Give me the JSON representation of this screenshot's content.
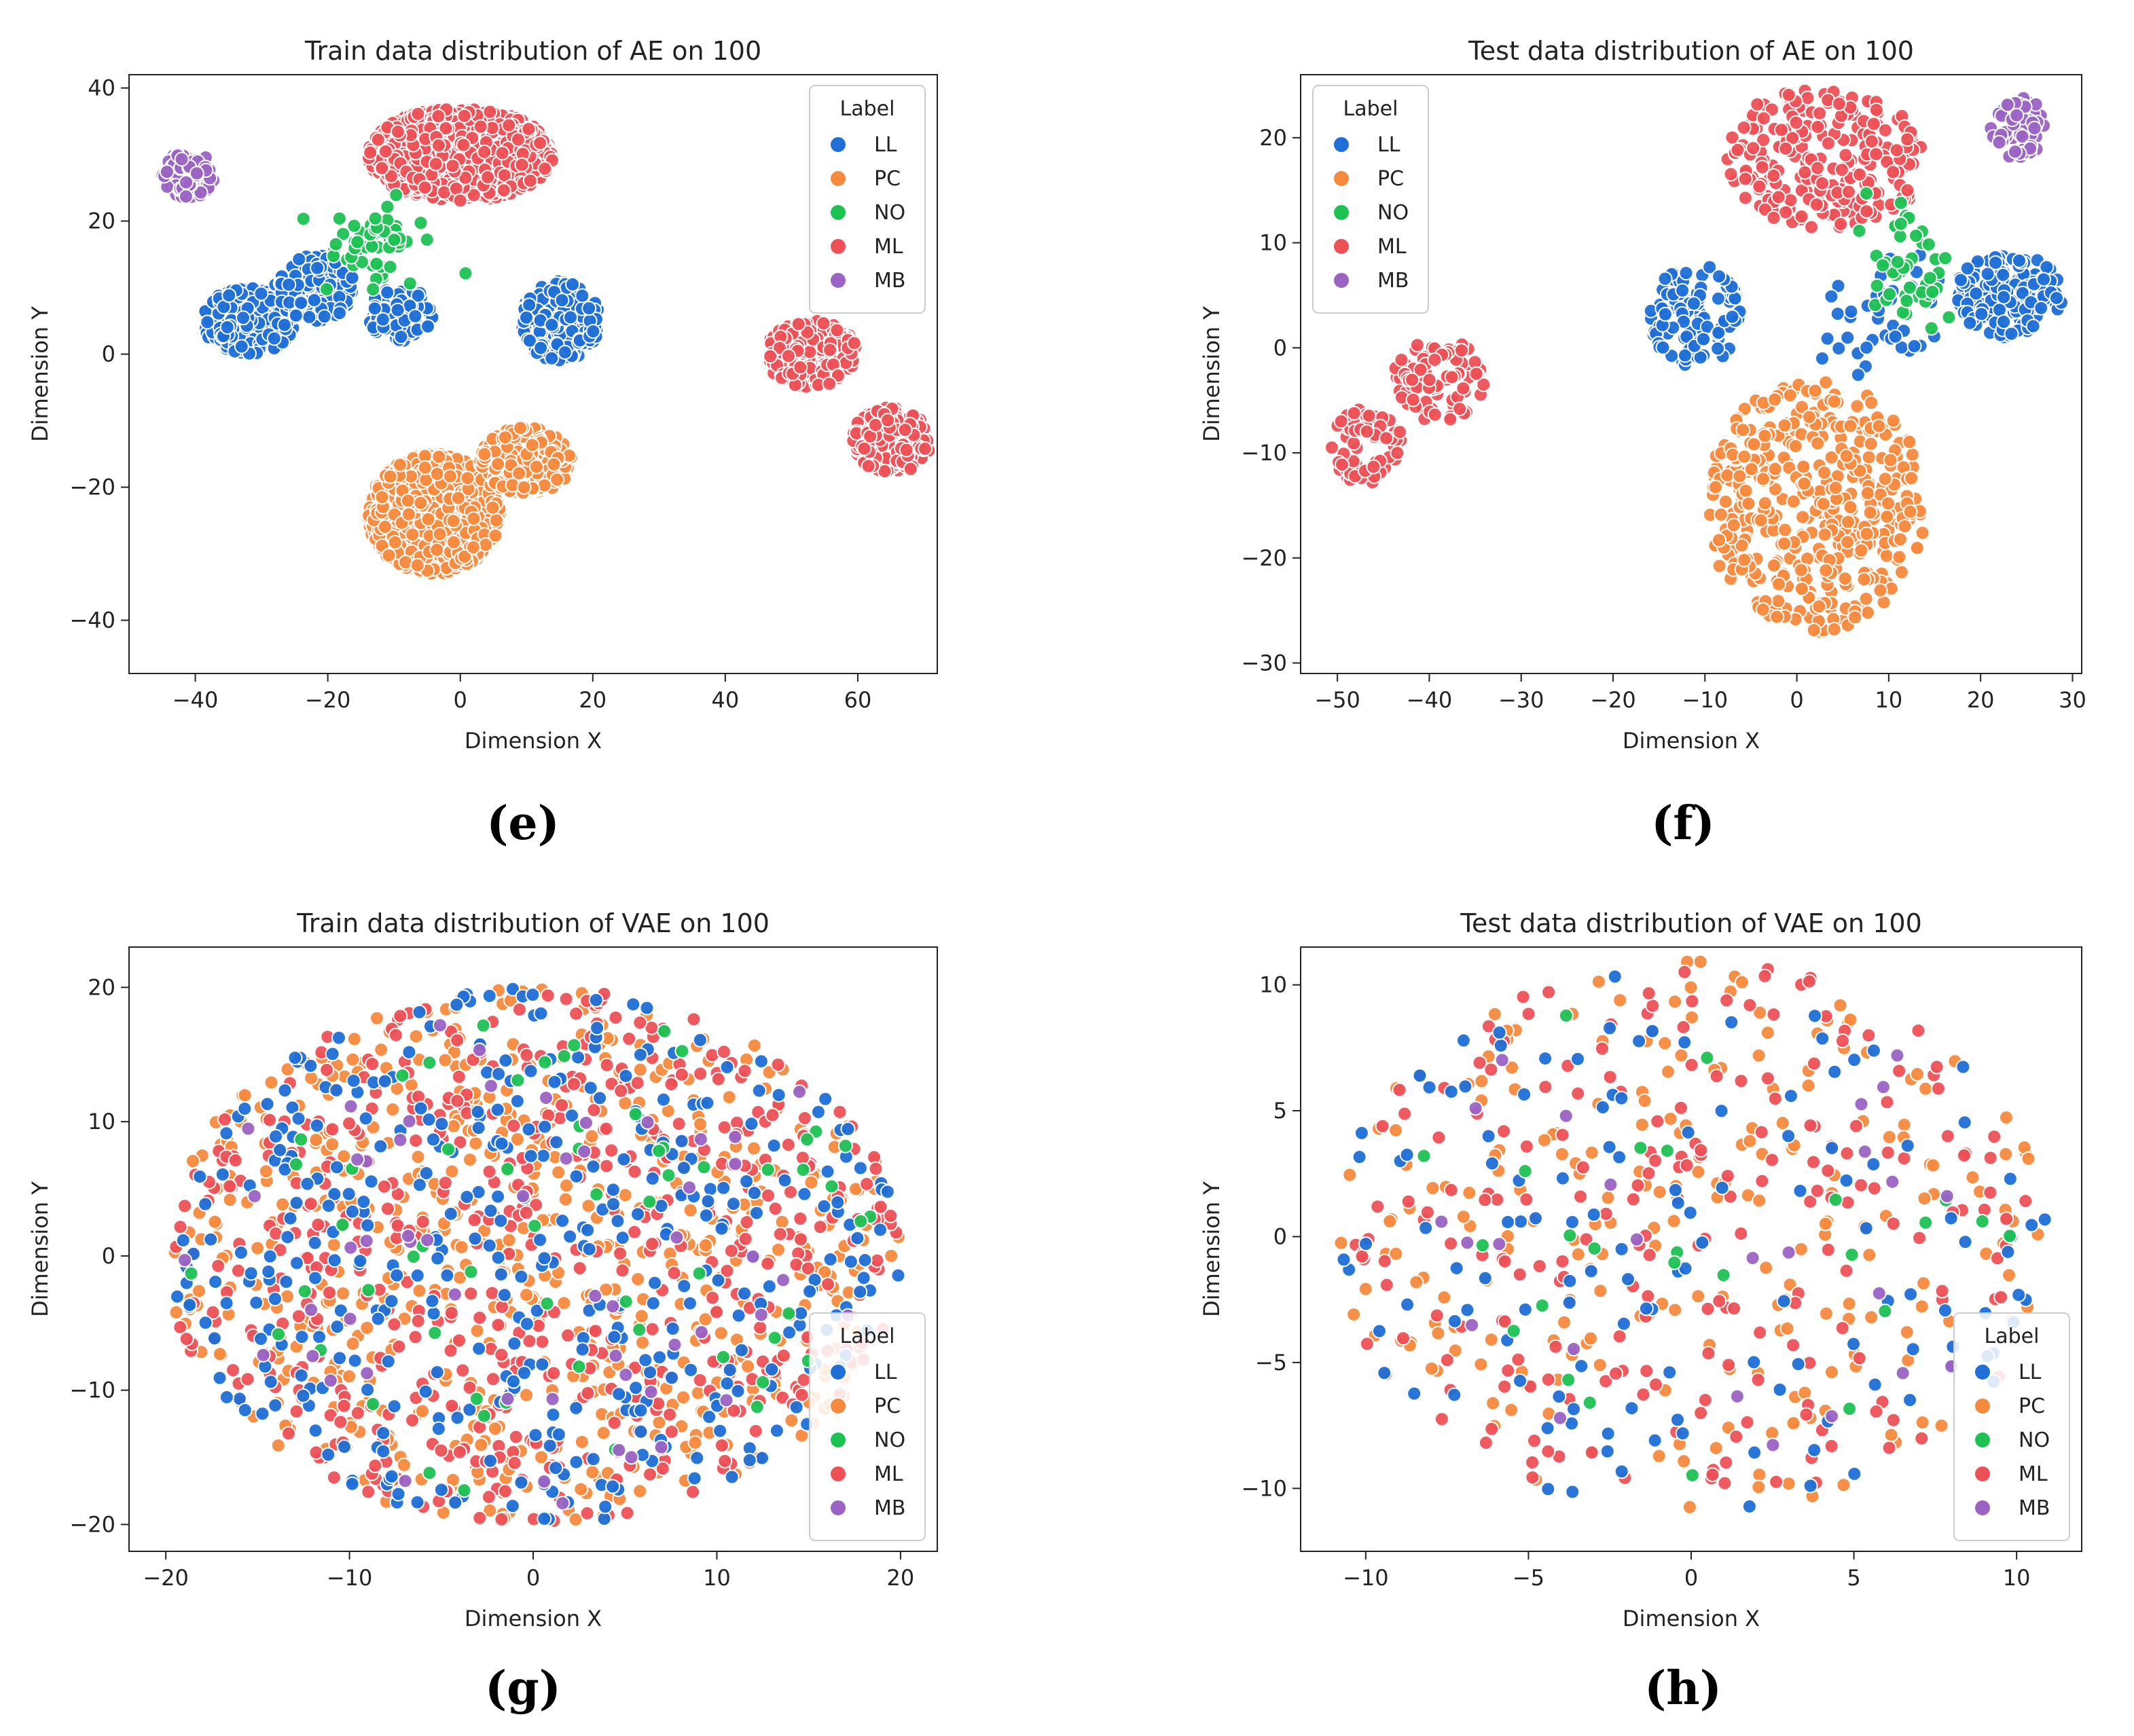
{
  "figure": {
    "captions": [
      "(e)",
      "(f)",
      "(g)",
      "(h)"
    ]
  },
  "colors": {
    "LL": "#1f6fd6",
    "PC": "#f58a3e",
    "NO": "#1ec253",
    "ML": "#ec5156",
    "MB": "#9a63c4"
  },
  "chart_data": [
    {
      "type": "scatter",
      "title": "Train data distribution of AE on 100",
      "xlabel": "Dimension X",
      "ylabel": "Dimension Y",
      "xlim": [
        -50,
        72
      ],
      "ylim": [
        -48,
        42
      ],
      "xticks": [
        -40,
        -20,
        0,
        20,
        40,
        60
      ],
      "yticks": [
        -40,
        -20,
        0,
        20,
        40
      ],
      "legend": {
        "title": "Label",
        "position": "top-right",
        "labels": [
          "LL",
          "PC",
          "NO",
          "ML",
          "MB"
        ]
      },
      "clusters": [
        {
          "label": "PC",
          "center": [
            -4,
            -24
          ],
          "spread": [
            10,
            9
          ],
          "n": 1500,
          "shape": "disc"
        },
        {
          "label": "PC",
          "center": [
            10,
            -16
          ],
          "spread": [
            7,
            5
          ],
          "n": 250,
          "shape": "disc"
        },
        {
          "label": "ML",
          "center": [
            0,
            30
          ],
          "spread": [
            14,
            7
          ],
          "n": 1200,
          "shape": "disc"
        },
        {
          "label": "ML",
          "center": [
            53,
            0
          ],
          "spread": [
            7,
            5
          ],
          "n": 240,
          "shape": "disc"
        },
        {
          "label": "ML",
          "center": [
            65,
            -13
          ],
          "spread": [
            6,
            5
          ],
          "n": 200,
          "shape": "disc"
        },
        {
          "label": "LL",
          "center": [
            -32,
            5
          ],
          "spread": [
            7,
            5
          ],
          "n": 300,
          "shape": "disc"
        },
        {
          "label": "LL",
          "center": [
            -22,
            10
          ],
          "spread": [
            6,
            5
          ],
          "n": 140,
          "shape": "disc"
        },
        {
          "label": "LL",
          "center": [
            -9,
            6
          ],
          "spread": [
            5,
            4
          ],
          "n": 110,
          "shape": "disc"
        },
        {
          "label": "LL",
          "center": [
            15,
            5
          ],
          "spread": [
            6,
            6
          ],
          "n": 230,
          "shape": "disc"
        },
        {
          "label": "NO",
          "center": [
            -12,
            17
          ],
          "spread": [
            9,
            8
          ],
          "n": 60,
          "shape": "gauss"
        },
        {
          "label": "MB",
          "center": [
            -41,
            27
          ],
          "spread": [
            4,
            3.5
          ],
          "n": 110,
          "shape": "disc"
        }
      ]
    },
    {
      "type": "scatter",
      "title": "Test data distribution of AE on 100",
      "xlabel": "Dimension X",
      "ylabel": "Dimension Y",
      "xlim": [
        -54,
        31
      ],
      "ylim": [
        -31,
        26
      ],
      "xticks": [
        -50,
        -40,
        -30,
        -20,
        -10,
        0,
        10,
        20,
        30
      ],
      "yticks": [
        -30,
        -20,
        -10,
        0,
        10,
        20
      ],
      "legend": {
        "title": "Label",
        "position": "top-left",
        "labels": [
          "LL",
          "PC",
          "NO",
          "ML",
          "MB"
        ]
      },
      "clusters": [
        {
          "label": "PC",
          "center": [
            2,
            -15
          ],
          "spread": [
            12,
            12
          ],
          "n": 430,
          "shape": "disc"
        },
        {
          "label": "ML",
          "center": [
            3,
            18
          ],
          "spread": [
            11,
            7
          ],
          "n": 230,
          "shape": "disc"
        },
        {
          "label": "ML",
          "center": [
            -39,
            -3
          ],
          "spread": [
            5,
            4
          ],
          "n": 90,
          "shape": "disc"
        },
        {
          "label": "ML",
          "center": [
            -47,
            -9
          ],
          "spread": [
            4,
            4
          ],
          "n": 70,
          "shape": "disc"
        },
        {
          "label": "LL",
          "center": [
            -11,
            3
          ],
          "spread": [
            5,
            5
          ],
          "n": 110,
          "shape": "disc"
        },
        {
          "label": "LL",
          "center": [
            23,
            5
          ],
          "spread": [
            6,
            4
          ],
          "n": 160,
          "shape": "disc"
        },
        {
          "label": "LL",
          "center": [
            10,
            3
          ],
          "spread": [
            8,
            6
          ],
          "n": 40,
          "shape": "gauss"
        },
        {
          "label": "NO",
          "center": [
            12,
            8
          ],
          "spread": [
            6,
            7
          ],
          "n": 45,
          "shape": "gauss"
        },
        {
          "label": "MB",
          "center": [
            24,
            21
          ],
          "spread": [
            3,
            3
          ],
          "n": 60,
          "shape": "disc"
        }
      ]
    },
    {
      "type": "scatter",
      "title": "Train data distribution of VAE on 100",
      "xlabel": "Dimension X",
      "ylabel": "Dimension Y",
      "xlim": [
        -22,
        22
      ],
      "ylim": [
        -22,
        23
      ],
      "xticks": [
        -20,
        -10,
        0,
        10,
        20
      ],
      "yticks": [
        -20,
        -10,
        0,
        10,
        20
      ],
      "legend": {
        "title": "Label",
        "position": "bottom-right",
        "labels": [
          "LL",
          "PC",
          "NO",
          "ML",
          "MB"
        ]
      },
      "clusters": [
        {
          "label": "PC",
          "center": [
            0,
            0
          ],
          "spread": [
            20,
            20
          ],
          "n": 620,
          "shape": "disc"
        },
        {
          "label": "ML",
          "center": [
            0,
            0
          ],
          "spread": [
            20,
            20
          ],
          "n": 560,
          "shape": "disc"
        },
        {
          "label": "LL",
          "center": [
            0,
            0
          ],
          "spread": [
            20,
            20
          ],
          "n": 400,
          "shape": "disc"
        },
        {
          "label": "NO",
          "center": [
            0,
            0
          ],
          "spread": [
            19,
            19
          ],
          "n": 60,
          "shape": "disc"
        },
        {
          "label": "MB",
          "center": [
            0,
            0
          ],
          "spread": [
            19,
            19
          ],
          "n": 55,
          "shape": "disc"
        }
      ]
    },
    {
      "type": "scatter",
      "title": "Test data distribution of VAE on 100",
      "xlabel": "Dimension X",
      "ylabel": "Dimension Y",
      "xlim": [
        -12,
        12
      ],
      "ylim": [
        -12.5,
        11.5
      ],
      "xticks": [
        -10,
        -5,
        0,
        5,
        10
      ],
      "yticks": [
        -10,
        -5,
        0,
        5,
        10
      ],
      "legend": {
        "title": "Label",
        "position": "bottom-right",
        "labels": [
          "LL",
          "PC",
          "NO",
          "ML",
          "MB"
        ]
      },
      "clusters": [
        {
          "label": "PC",
          "center": [
            0,
            0
          ],
          "spread": [
            11,
            11
          ],
          "n": 230,
          "shape": "disc"
        },
        {
          "label": "ML",
          "center": [
            0,
            0
          ],
          "spread": [
            11,
            11
          ],
          "n": 220,
          "shape": "disc"
        },
        {
          "label": "LL",
          "center": [
            0,
            0
          ],
          "spread": [
            11,
            11
          ],
          "n": 130,
          "shape": "disc"
        },
        {
          "label": "NO",
          "center": [
            0,
            0
          ],
          "spread": [
            10,
            10
          ],
          "n": 25,
          "shape": "disc"
        },
        {
          "label": "MB",
          "center": [
            0,
            0
          ],
          "spread": [
            10,
            10
          ],
          "n": 25,
          "shape": "disc"
        }
      ]
    }
  ]
}
